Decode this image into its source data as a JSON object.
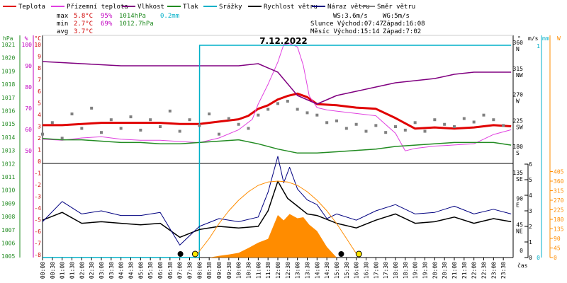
{
  "chart_data": {
    "type": "line",
    "title": "7.12.2022",
    "x_axis": {
      "label": "čas",
      "ticks": [
        "00:00",
        "00:30",
        "01:00",
        "01:30",
        "02:00",
        "02:30",
        "03:00",
        "03:30",
        "04:00",
        "04:30",
        "05:00",
        "05:30",
        "06:00",
        "06:30",
        "07:00",
        "07:30",
        "08:00",
        "08:30",
        "09:00",
        "09:30",
        "10:00",
        "10:30",
        "11:00",
        "11:30",
        "12:00",
        "12:30",
        "13:00",
        "13:30",
        "14:00",
        "14:30",
        "15:00",
        "15:30",
        "16:00",
        "16:30",
        "17:00",
        "17:30",
        "18:00",
        "18:30",
        "19:00",
        "19:30",
        "20:00",
        "20:30",
        "21:00",
        "21:30",
        "22:00",
        "22:30",
        "23:00",
        "23:30"
      ]
    },
    "axes": {
      "pressure": {
        "label": "hPa",
        "color": "#228b22",
        "ticks": [
          1021,
          1020,
          1019,
          1018,
          1017,
          1016,
          1015,
          1014,
          1013,
          1012,
          1011,
          1010,
          1009,
          1008,
          1007,
          1006,
          1005
        ]
      },
      "humidity": {
        "label": "%",
        "color": "#c000c0",
        "ticks": [
          100,
          90,
          80,
          70,
          60,
          50
        ]
      },
      "temperature": {
        "label": "°C",
        "color": "#d00000",
        "ticks": [
          10,
          9,
          8,
          7,
          6,
          5,
          4,
          3,
          2,
          1,
          0,
          -1,
          -2,
          -3,
          -4,
          -5,
          -6,
          -7,
          -8
        ]
      },
      "wind_direction": {
        "label": "°",
        "color": "#000000",
        "ticks": [
          {
            "deg": "360",
            "dir": "N"
          },
          {
            "deg": "315",
            "dir": "NW"
          },
          {
            "deg": "270",
            "dir": "W"
          },
          {
            "deg": "225",
            "dir": "SW"
          },
          {
            "deg": "180",
            "dir": "S"
          },
          {
            "deg": "135",
            "dir": "SE"
          },
          {
            "deg": "90",
            "dir": "E"
          },
          {
            "deg": "45",
            "dir": "NE"
          },
          {
            "deg": "0",
            "dir": ""
          }
        ]
      },
      "wind_speed": {
        "label": "m/s",
        "color": "#000000",
        "ticks": [
          6,
          5,
          4,
          3,
          2,
          1,
          0
        ]
      },
      "rain": {
        "label": "mm",
        "color": "#00b0c8",
        "ticks": [
          1,
          0
        ]
      },
      "solar": {
        "label": "W",
        "color": "#ff8c00",
        "ticks": [
          405,
          360,
          315,
          270,
          225,
          180,
          135,
          90,
          45,
          0
        ]
      }
    },
    "legend": [
      {
        "name": "Teplota",
        "color": "#e00000"
      },
      {
        "name": "Přízemní teplota",
        "color": "#e040e0"
      },
      {
        "name": "Vlhkost",
        "color": "#800080"
      },
      {
        "name": "Tlak",
        "color": "#228b22"
      },
      {
        "name": "Srážky",
        "color": "#00b0c8"
      },
      {
        "name": "Rychlost větru",
        "color": "#000000"
      },
      {
        "name": "Náraz větru",
        "color": "#000080"
      },
      {
        "name": "Směr větru",
        "color": "#808080"
      }
    ],
    "stats": {
      "max": {
        "label": "max",
        "temp": "5.8°C",
        "hum": "95%",
        "press": "1014hPa",
        "rain": "0.2mm"
      },
      "min": {
        "label": "min",
        "temp": "2.7°C",
        "hum": "69%",
        "press": "1012.7hPa"
      },
      "avg": {
        "label": "avg",
        "temp": "3.7°C"
      }
    },
    "info": {
      "ws": "WS:3.6m/s",
      "wg": "WG:5m/s",
      "sun_rise": "Slunce Východ:07:47",
      "sun_set": "Západ:16:08",
      "moon_rise": "Měsíc  Východ:15:14",
      "moon_set": "Západ:7:02"
    },
    "series": [
      {
        "name": "Teplota",
        "axis": "temperature",
        "color": "#e00000",
        "x": [
          0,
          1,
          2,
          3,
          4,
          5,
          6,
          7,
          8,
          9,
          10,
          10.5,
          11,
          11.5,
          12,
          12.5,
          13,
          13.5,
          14,
          15,
          16,
          17,
          18,
          19,
          20,
          21,
          22,
          23,
          23.9
        ],
        "values": [
          3.1,
          3.1,
          3.2,
          3.3,
          3.3,
          3.3,
          3.3,
          3.2,
          3.2,
          3.4,
          3.6,
          3.9,
          4.5,
          4.8,
          5.3,
          5.6,
          5.8,
          5.5,
          4.9,
          4.8,
          4.6,
          4.5,
          3.7,
          2.8,
          2.9,
          2.8,
          2.9,
          3.1,
          3.0
        ]
      },
      {
        "name": "Přízemní teplota",
        "axis": "temperature",
        "color": "#e040e0",
        "x": [
          0,
          1,
          2,
          3,
          4,
          5,
          6,
          7,
          8,
          9,
          10,
          10.7,
          11,
          11.5,
          12,
          12.3,
          12.6,
          13,
          13.3,
          13.6,
          14,
          14.5,
          15,
          16,
          17,
          18,
          18.5,
          19,
          20,
          21,
          22,
          23,
          23.9
        ],
        "values": [
          1.9,
          1.8,
          2.0,
          2.1,
          1.9,
          1.8,
          1.8,
          1.7,
          1.6,
          2.0,
          2.7,
          3.6,
          4.9,
          6.6,
          8.5,
          10.0,
          10.1,
          9.8,
          8.2,
          5.6,
          4.6,
          4.4,
          4.3,
          4.1,
          3.9,
          2.4,
          0.9,
          1.1,
          1.3,
          1.4,
          1.5,
          2.3,
          2.7
        ]
      },
      {
        "name": "Vlhkost",
        "axis": "humidity",
        "color": "#800080",
        "x": [
          0,
          2,
          4,
          6,
          8,
          9,
          10,
          11,
          12,
          13,
          14,
          14.5,
          15,
          16,
          17,
          18,
          19,
          20,
          21,
          22,
          23,
          23.9
        ],
        "values": [
          92,
          91,
          90,
          90,
          90,
          90,
          90,
          91,
          87,
          76,
          72,
          74,
          76,
          78,
          80,
          82,
          83,
          84,
          86,
          87,
          87,
          87
        ]
      },
      {
        "name": "Tlak",
        "axis": "pressure",
        "color": "#228b22",
        "x": [
          0,
          1,
          2,
          3,
          4,
          5,
          6,
          7,
          8,
          9,
          10,
          11,
          12,
          13,
          14,
          15,
          16,
          17,
          18,
          19,
          20,
          21,
          22,
          23,
          23.9
        ],
        "values": [
          1013.9,
          1013.8,
          1013.8,
          1013.7,
          1013.6,
          1013.6,
          1013.5,
          1013.5,
          1013.6,
          1013.7,
          1013.8,
          1013.5,
          1013.1,
          1012.8,
          1012.8,
          1012.9,
          1013.0,
          1013.1,
          1013.3,
          1013.4,
          1013.5,
          1013.6,
          1013.6,
          1013.6,
          1013.4
        ]
      },
      {
        "name": "Srážky",
        "axis": "rain",
        "color": "#00b0c8",
        "x": [
          0,
          8,
          8.01,
          23.9
        ],
        "values": [
          0,
          0,
          0.2,
          0.2
        ]
      },
      {
        "name": "Rychlost větru",
        "axis": "wind_speed",
        "color": "#000000",
        "x": [
          0,
          1,
          2,
          3,
          4,
          5,
          6,
          7,
          8,
          9,
          10,
          11,
          11.5,
          12,
          12.5,
          13,
          13.5,
          14,
          15,
          16,
          17,
          18,
          19,
          20,
          21,
          22,
          23,
          23.9
        ],
        "values": [
          2.4,
          2.9,
          2.2,
          2.3,
          2.2,
          2.1,
          2.2,
          1.3,
          1.8,
          2.0,
          1.9,
          2.0,
          3.0,
          4.9,
          3.8,
          3.3,
          2.8,
          2.7,
          2.2,
          1.9,
          2.4,
          2.8,
          2.2,
          2.3,
          2.6,
          2.2,
          2.5,
          2.3
        ]
      },
      {
        "name": "Náraz větru",
        "axis": "wind_speed",
        "color": "#000080",
        "x": [
          0,
          1,
          2,
          3,
          4,
          5,
          6,
          7,
          8,
          9,
          10,
          11,
          11.5,
          12,
          12.3,
          12.6,
          13,
          13.5,
          14,
          14.5,
          15,
          16,
          17,
          18,
          19,
          20,
          21,
          22,
          23,
          23.9
        ],
        "values": [
          2.3,
          3.6,
          2.8,
          3.0,
          2.7,
          2.7,
          2.9,
          0.8,
          2.0,
          2.5,
          2.3,
          2.6,
          4.2,
          6.5,
          4.8,
          5.8,
          4.4,
          3.7,
          3.4,
          2.5,
          2.8,
          2.4,
          3.0,
          3.4,
          2.8,
          2.9,
          3.3,
          2.8,
          3.1,
          2.8
        ]
      },
      {
        "name": "Směr větru",
        "axis": "wind_direction",
        "type": "scatter",
        "color": "#808080",
        "x": [
          0,
          0.5,
          1,
          1.5,
          2,
          2.5,
          3,
          3.5,
          4,
          4.5,
          5,
          5.5,
          6,
          6.5,
          7,
          7.5,
          8,
          8.5,
          9,
          9.5,
          10,
          10.5,
          11,
          11.5,
          12,
          12.5,
          13,
          13.5,
          14,
          14.5,
          15,
          15.5,
          16,
          16.5,
          17,
          17.5,
          18,
          18.5,
          19,
          19.5,
          20,
          20.5,
          21,
          21.5,
          22,
          22.5,
          23,
          23.5
        ],
        "values": [
          205,
          225,
          198,
          240,
          215,
          250,
          208,
          230,
          215,
          235,
          212,
          230,
          218,
          245,
          210,
          230,
          220,
          240,
          205,
          232,
          222,
          215,
          238,
          248,
          258,
          262,
          248,
          242,
          238,
          225,
          228,
          215,
          222,
          210,
          220,
          208,
          218,
          212,
          225,
          210,
          230,
          222,
          218,
          232,
          226,
          238,
          230,
          220
        ]
      },
      {
        "name": "Sluneční záření",
        "axis": "solar",
        "type": "area",
        "color": "#ff8c00",
        "x": [
          0,
          8.5,
          9,
          9.5,
          10,
          10.5,
          11,
          11.5,
          12,
          12.3,
          12.6,
          13,
          13.3,
          13.6,
          14,
          14.5,
          15,
          15.5,
          23.9
        ],
        "values": [
          0,
          0,
          8,
          14,
          22,
          45,
          70,
          88,
          200,
          175,
          205,
          185,
          190,
          155,
          125,
          50,
          0,
          0,
          0
        ]
      },
      {
        "name": "Teoretické záření",
        "axis": "solar",
        "type": "line",
        "color": "#ff8c00",
        "x": [
          7.75,
          8.5,
          9,
          9.5,
          10,
          10.5,
          11,
          11.5,
          12,
          12.5,
          13,
          13.5,
          14,
          14.5,
          15,
          15.5,
          16.13
        ],
        "values": [
          0,
          90,
          160,
          220,
          270,
          310,
          340,
          356,
          360,
          356,
          340,
          310,
          270,
          220,
          160,
          90,
          0
        ]
      }
    ],
    "markers": [
      {
        "type": "moon",
        "time": "07:02",
        "icon": "moon-icon"
      },
      {
        "type": "sun",
        "time": "07:47",
        "icon": "sun-icon"
      },
      {
        "type": "moon",
        "time": "15:14",
        "icon": "moon-icon"
      },
      {
        "type": "sun",
        "time": "16:08",
        "icon": "sun-icon"
      }
    ]
  }
}
